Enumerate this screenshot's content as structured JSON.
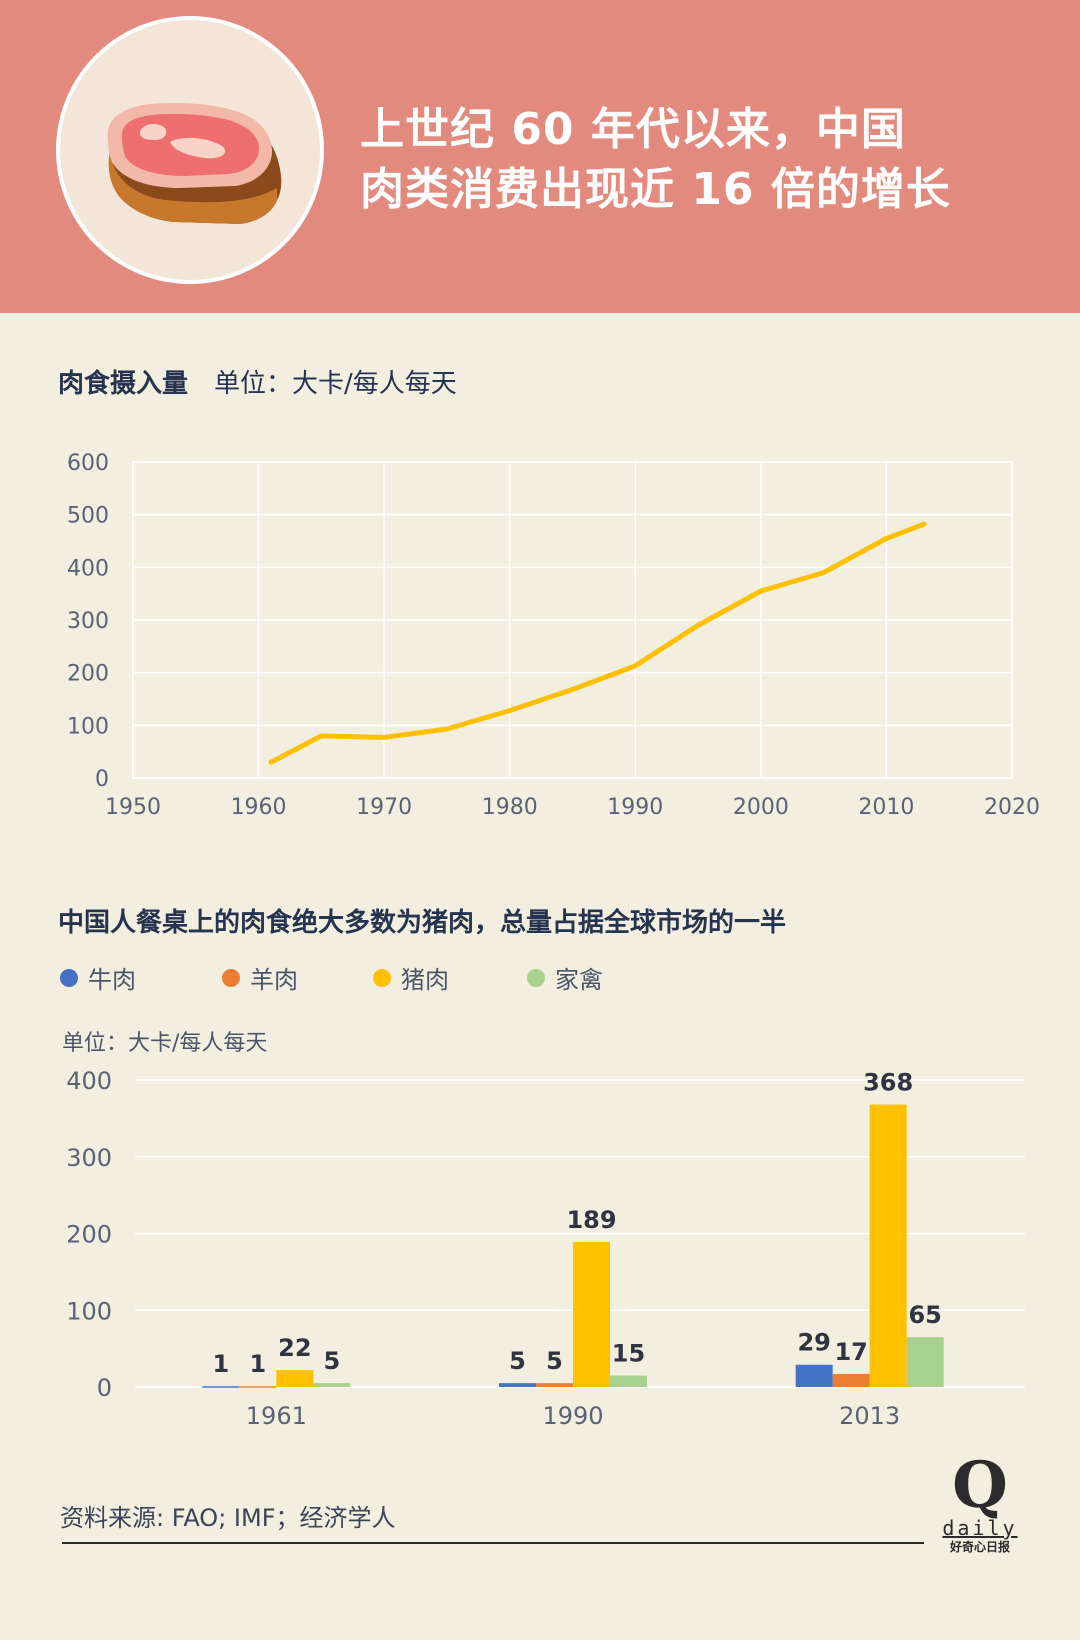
{
  "header": {
    "headline_line1": "上世纪 60 年代以来，中国",
    "headline_line2": "肉类消费出现近 16 倍的增长",
    "icon": "steak-icon",
    "colors": {
      "band": "#e38a7e",
      "emblem": "#f3e6d8"
    }
  },
  "line_section": {
    "title": "肉食摄入量",
    "unit": "单位：大卡/每人每天"
  },
  "bar_section": {
    "title": "中国人餐桌上的肉食绝大多数为猪肉，总量占据全球市场的一半",
    "unit": "单位：大卡/每人每天",
    "legend": [
      {
        "label": "牛肉",
        "color": "#4472c4"
      },
      {
        "label": "羊肉",
        "color": "#ed7d31"
      },
      {
        "label": "猪肉",
        "color": "#ffc000"
      },
      {
        "label": "家禽",
        "color": "#a9d18e"
      }
    ]
  },
  "chart_data": [
    {
      "type": "line",
      "title": "肉食摄入量",
      "ylabel": "单位：大卡/每人每天",
      "xlabel": "",
      "x": [
        1961,
        1965,
        1970,
        1975,
        1980,
        1985,
        1990,
        1995,
        2000,
        2005,
        2010,
        2013
      ],
      "series": [
        {
          "values": [
            30,
            80,
            77,
            93,
            128,
            168,
            213,
            290,
            355,
            390,
            455,
            482
          ]
        }
      ],
      "xlim": [
        1950,
        2020
      ],
      "ylim": [
        0,
        600
      ],
      "xticks": [
        1950,
        1960,
        1970,
        1980,
        1990,
        2000,
        2010,
        2020
      ],
      "yticks": [
        0,
        100,
        200,
        300,
        400,
        500,
        600
      ],
      "grid": true,
      "line_color": "#ffc000"
    },
    {
      "type": "bar",
      "title": "中国人餐桌上的肉食绝大多数为猪肉，总量占据全球市场的一半",
      "ylabel": "单位：大卡/每人每天",
      "xlabel": "",
      "categories": [
        "1961",
        "1990",
        "2013"
      ],
      "series": [
        {
          "name": "牛肉",
          "values": [
            1,
            5,
            29
          ],
          "color": "#4472c4"
        },
        {
          "name": "羊肉",
          "values": [
            1,
            5,
            17
          ],
          "color": "#ed7d31"
        },
        {
          "name": "猪肉",
          "values": [
            22,
            189,
            368
          ],
          "color": "#ffc000"
        },
        {
          "name": "家禽",
          "values": [
            5,
            15,
            65
          ],
          "color": "#a9d18e"
        }
      ],
      "ylim": [
        0,
        400
      ],
      "yticks": [
        0,
        100,
        200,
        300,
        400
      ],
      "grid": true,
      "legend_position": "top-left"
    }
  ],
  "footer": {
    "source": "资料来源: FAO; IMF；经济学人",
    "logo_letter": "Q",
    "logo_word": "daily",
    "logo_cn": "好奇心日报"
  }
}
